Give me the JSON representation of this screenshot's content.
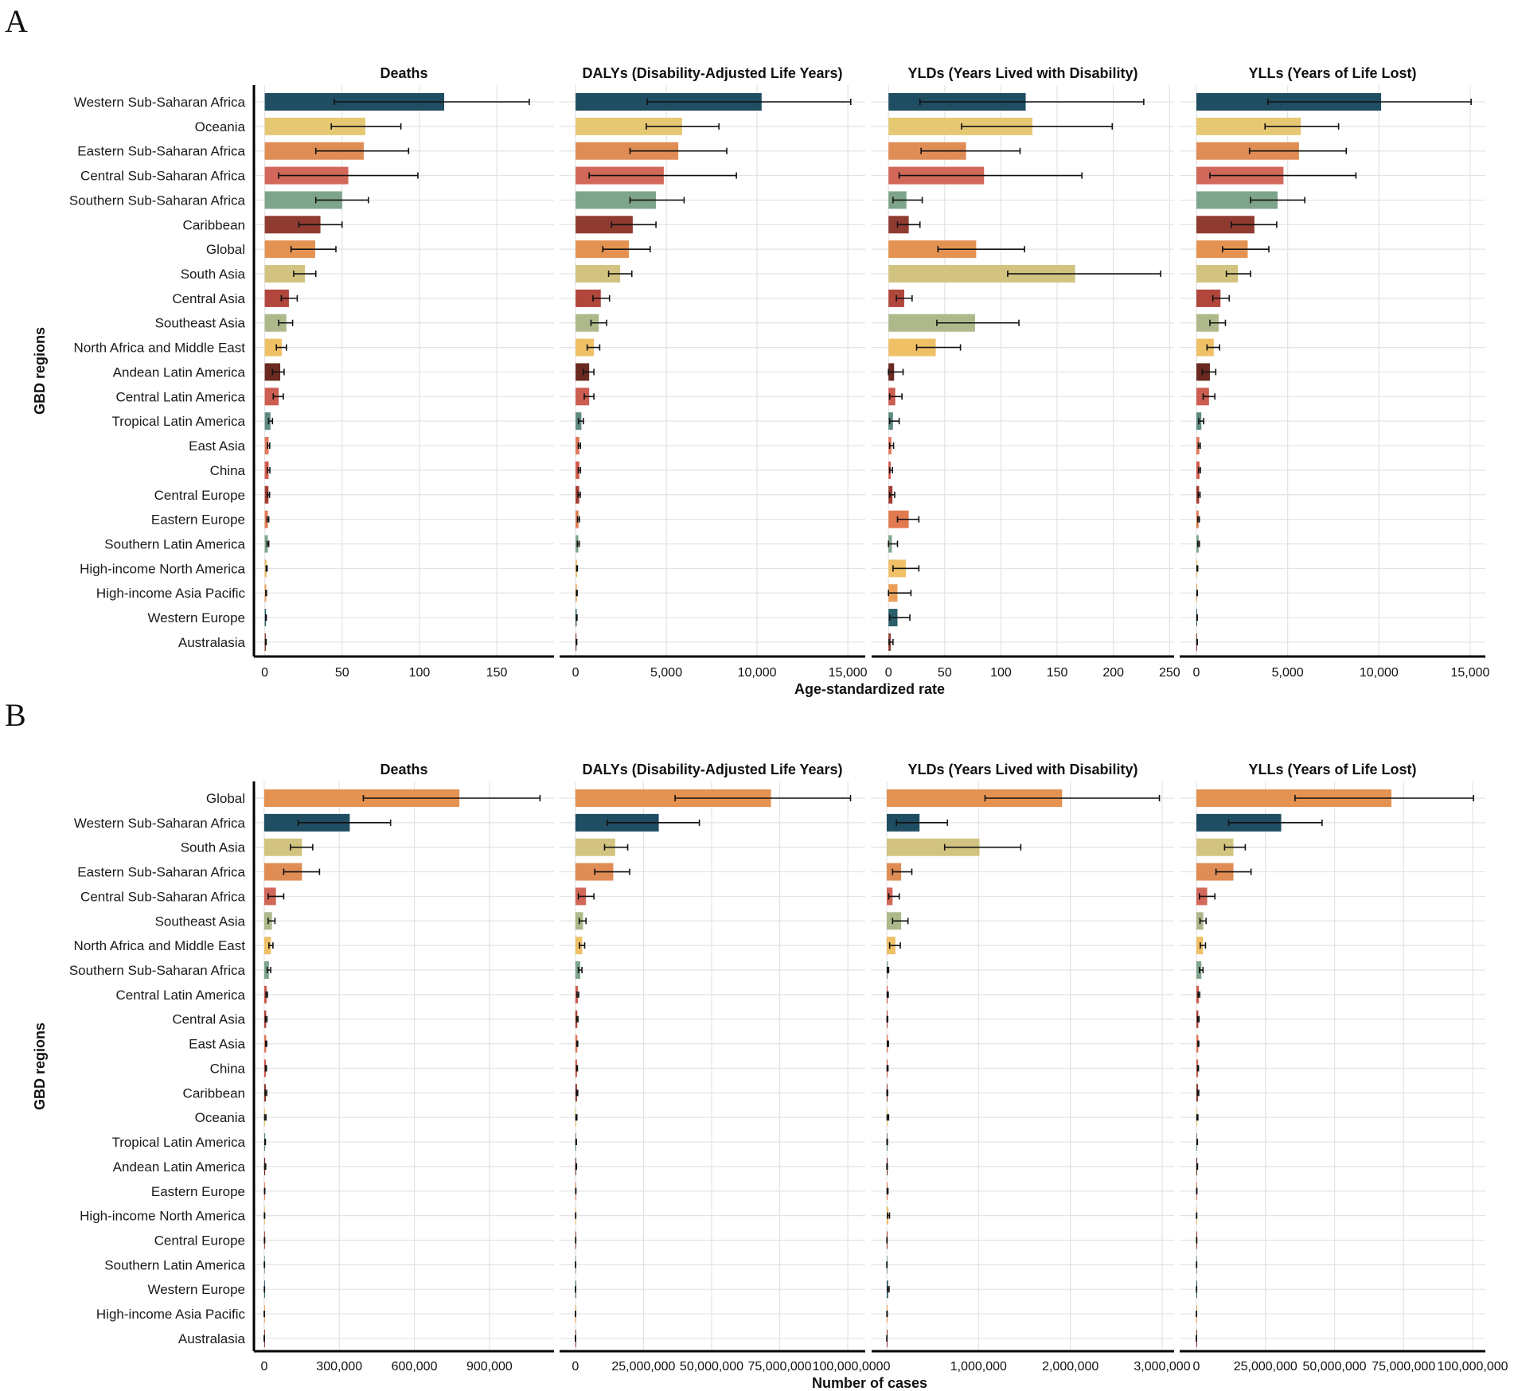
{
  "region_colors": {
    "Western Sub-Saharan Africa": "#1f4d62",
    "Oceania": "#e6c873",
    "Eastern Sub-Saharan Africa": "#e08c55",
    "Central Sub-Saharan Africa": "#d2685a",
    "Southern Sub-Saharan Africa": "#7fa48c",
    "Caribbean": "#8f3b30",
    "Global": "#e49251",
    "South Asia": "#d2c480",
    "Central Asia": "#b0463c",
    "Southeast Asia": "#adb98b",
    "North Africa and Middle East": "#efc066",
    "Andean Latin America": "#6b2a20",
    "Central Latin America": "#cc5d51",
    "Tropical Latin America": "#5f8a82",
    "East Asia": "#e0785a",
    "China": "#d25b4d",
    "Central Europe": "#a33c31",
    "Eastern Europe": "#e27a4f",
    "Southern Latin America": "#7fa48c",
    "High-income North America": "#efc066",
    "High-income Asia Pacific": "#eba05a",
    "Western Europe": "#2c5e6b",
    "Australasia": "#8a3a2e"
  },
  "chart_data": [
    {
      "type": "bar",
      "orientation": "horizontal",
      "panel_label": "A",
      "xlabel": "Age-standardized rate",
      "ylabel": "GBD regions",
      "grid": true,
      "regions": [
        "Western Sub-Saharan Africa",
        "Oceania",
        "Eastern Sub-Saharan Africa",
        "Central Sub-Saharan Africa",
        "Southern Sub-Saharan Africa",
        "Caribbean",
        "Global",
        "South Asia",
        "Central Asia",
        "Southeast Asia",
        "North Africa and Middle East",
        "Andean Latin America",
        "Central Latin America",
        "Tropical Latin America",
        "East Asia",
        "China",
        "Central Europe",
        "Eastern Europe",
        "Southern Latin America",
        "High-income North America",
        "High-income Asia Pacific",
        "Western Europe",
        "Australasia"
      ],
      "facets": [
        {
          "title": "Deaths",
          "xlim": [
            -7,
            187
          ],
          "ticks": [
            0,
            50,
            100,
            150
          ],
          "tick_labels": [
            "0",
            "50",
            "100",
            "150"
          ],
          "values": [
            116,
            65,
            64,
            54,
            50,
            36,
            32.6,
            26,
            15.6,
            14,
            11,
            10,
            9,
            3.7,
            2.5,
            2.5,
            2.4,
            2,
            2,
            1.2,
            0.9,
            0.8,
            0.7
          ],
          "lower": [
            45,
            43,
            33,
            9,
            33,
            22,
            17,
            18.7,
            10.7,
            9,
            7.5,
            5,
            5.5,
            2.5,
            1.8,
            1.8,
            1.7,
            1.5,
            1.5,
            0.9,
            0.7,
            0.6,
            0.5
          ],
          "upper": [
            171,
            88,
            93,
            99,
            67,
            50,
            46,
            33,
            21,
            18,
            14,
            12.5,
            12,
            5,
            3.2,
            3.3,
            3.1,
            2.6,
            2.6,
            1.5,
            1.1,
            1,
            0.9
          ]
        },
        {
          "title": "DALYs (Disability-Adjusted Life Years)",
          "xlim": [
            -880,
            15960
          ],
          "ticks": [
            0,
            5000,
            10000,
            15000
          ],
          "tick_labels": [
            "0",
            "5,000",
            "10,000",
            "15,000"
          ],
          "values": [
            10250,
            5870,
            5660,
            4860,
            4430,
            3150,
            2940,
            2460,
            1390,
            1280,
            1010,
            750,
            750,
            320,
            210,
            210,
            200,
            160,
            150,
            80,
            70,
            60,
            50
          ],
          "lower": [
            3950,
            3900,
            3000,
            750,
            3000,
            1980,
            1500,
            1820,
            960,
            850,
            640,
            430,
            480,
            160,
            150,
            150,
            140,
            110,
            100,
            60,
            50,
            40,
            35
          ],
          "upper": [
            15160,
            7900,
            8330,
            8860,
            5980,
            4430,
            4110,
            3100,
            1870,
            1710,
            1330,
            1010,
            1010,
            430,
            270,
            270,
            260,
            210,
            200,
            100,
            90,
            80,
            65
          ]
        },
        {
          "title": "YLDs (Years Lived with Disability)",
          "xlim": [
            -15,
            254
          ],
          "ticks": [
            0,
            50,
            100,
            150,
            200,
            250
          ],
          "tick_labels": [
            "0",
            "50",
            "100",
            "150",
            "200",
            "250"
          ],
          "values": [
            122,
            128,
            69,
            85,
            16,
            18,
            78,
            166,
            14,
            77,
            42,
            5,
            6,
            4,
            2.6,
            2,
            3.5,
            18,
            3,
            15.5,
            8,
            8,
            2
          ],
          "lower": [
            28,
            65,
            29,
            9.5,
            4,
            8,
            44,
            106,
            7,
            43,
            25,
            0,
            1,
            1,
            1,
            1,
            1,
            8,
            0,
            4,
            0,
            1,
            0.5
          ],
          "upper": [
            227,
            199,
            117,
            172,
            30,
            28,
            121,
            242,
            21,
            116,
            64,
            13,
            12,
            9.5,
            4.5,
            3.5,
            5.5,
            27,
            8,
            27,
            20,
            19,
            4
          ]
        },
        {
          "title": "YLLs (Years of Life Lost)",
          "xlim": [
            -916,
            15830
          ],
          "ticks": [
            0,
            5000,
            10000,
            15000
          ],
          "tick_labels": [
            "0",
            "5,000",
            "10,000",
            "15,000"
          ],
          "values": [
            10120,
            5720,
            5620,
            4770,
            4450,
            3180,
            2810,
            2280,
            1320,
            1220,
            950,
            740,
            690,
            270,
            160,
            170,
            150,
            120,
            120,
            50,
            40,
            40,
            40
          ],
          "lower": [
            3920,
            3760,
            2910,
            740,
            2970,
            1910,
            1430,
            1640,
            900,
            740,
            580,
            320,
            370,
            130,
            110,
            120,
            100,
            80,
            80,
            35,
            30,
            25,
            25
          ],
          "upper": [
            15050,
            7790,
            8210,
            8740,
            5940,
            4400,
            3970,
            2970,
            1800,
            1590,
            1270,
            1060,
            1010,
            400,
            210,
            220,
            200,
            160,
            160,
            70,
            55,
            50,
            50
          ]
        }
      ]
    },
    {
      "type": "bar",
      "orientation": "horizontal",
      "panel_label": "B",
      "xlabel": "Number of cases",
      "ylabel": "GBD regions",
      "grid": true,
      "regions": [
        "Global",
        "Western Sub-Saharan Africa",
        "South Asia",
        "Eastern Sub-Saharan Africa",
        "Central Sub-Saharan Africa",
        "Southeast Asia",
        "North Africa and Middle East",
        "Southern Sub-Saharan Africa",
        "Central Latin America",
        "Central Asia",
        "East Asia",
        "China",
        "Caribbean",
        "Oceania",
        "Tropical Latin America",
        "Andean Latin America",
        "Eastern Europe",
        "High-income North America",
        "Central Europe",
        "Southern Latin America",
        "Western Europe",
        "High-income Asia Pacific",
        "Australasia"
      ],
      "facets": [
        {
          "title": "Deaths",
          "xlim": [
            -41000,
            1158000
          ],
          "ticks": [
            0,
            300000,
            600000,
            900000
          ],
          "tick_labels": [
            "0",
            "300,000",
            "600,000",
            "900,000"
          ],
          "values": [
            780000,
            342000,
            151000,
            151000,
            47000,
            31000,
            27000,
            19000,
            10000,
            8000,
            8000,
            7000,
            7000,
            4000,
            4000,
            4000,
            2000,
            1500,
            1500,
            1000,
            1000,
            600,
            300
          ],
          "lower": [
            396000,
            136000,
            105000,
            78000,
            16000,
            16000,
            19000,
            12000,
            7000,
            5000,
            6000,
            5000,
            4000,
            2000,
            3000,
            2000,
            1500,
            1000,
            1000,
            700,
            700,
            400,
            200
          ],
          "upper": [
            1102000,
            505000,
            194000,
            221000,
            78000,
            43000,
            35000,
            26000,
            13000,
            11000,
            10000,
            9000,
            10000,
            7000,
            5000,
            6000,
            2500,
            2000,
            2000,
            1300,
            1300,
            800,
            400
          ]
        },
        {
          "title": "DALYs (Disability-Adjusted Life Years)",
          "xlim": [
            -5800000,
            106400000
          ],
          "ticks": [
            0,
            25000000,
            50000000,
            75000000,
            100000000
          ],
          "tick_labels": [
            "0",
            "25,000,000",
            "50,000,000",
            "75,000,000",
            "100,000,000"
          ],
          "values": [
            71800000,
            30600000,
            14600000,
            13900000,
            3900000,
            2800000,
            2500000,
            1800000,
            900000,
            700000,
            700000,
            600000,
            600000,
            350000,
            300000,
            300000,
            150000,
            100000,
            100000,
            80000,
            70000,
            40000,
            20000
          ],
          "lower": [
            36600000,
            11700000,
            10700000,
            7100000,
            1100000,
            1400000,
            1500000,
            1100000,
            600000,
            450000,
            550000,
            450000,
            400000,
            200000,
            220000,
            200000,
            110000,
            75000,
            75000,
            60000,
            50000,
            30000,
            15000
          ],
          "upper": [
            101000000,
            45500000,
            19200000,
            19900000,
            6800000,
            3900000,
            3400000,
            2400000,
            1200000,
            950000,
            850000,
            750000,
            850000,
            550000,
            380000,
            420000,
            190000,
            130000,
            130000,
            100000,
            90000,
            50000,
            25000
          ]
        },
        {
          "title": "YLDs (Years Lived with Disability)",
          "xlim": [
            -165000,
            3130000
          ],
          "ticks": [
            0,
            1000000,
            2000000,
            3000000
          ],
          "tick_labels": [
            "0",
            "1,000,000",
            "2,000,000",
            "3,000,000"
          ],
          "values": [
            1910000,
            357000,
            1010000,
            157000,
            63000,
            157000,
            94000,
            12000,
            10000,
            6000,
            12000,
            8000,
            5000,
            10000,
            4000,
            3000,
            8000,
            18000,
            2000,
            1000,
            15000,
            3000,
            1000
          ],
          "lower": [
            1070000,
            105000,
            630000,
            63000,
            21000,
            63000,
            31000,
            6000,
            5000,
            3000,
            7000,
            4000,
            2000,
            4000,
            2000,
            1000,
            4000,
            8000,
            1000,
            500,
            7000,
            1500,
            500
          ],
          "upper": [
            2970000,
            661000,
            1460000,
            273000,
            136000,
            231000,
            147000,
            20000,
            16000,
            10000,
            18000,
            13000,
            9000,
            20000,
            7000,
            6000,
            13000,
            30000,
            3000,
            2000,
            25000,
            5000,
            2000
          ]
        },
        {
          "title": "YLLs (Years of Life Lost)",
          "xlim": [
            -6050000,
            104600000
          ],
          "ticks": [
            0,
            25000000,
            50000000,
            75000000,
            100000000
          ],
          "tick_labels": [
            "0",
            "25,000,000",
            "50,000,000",
            "75,000,000",
            "100,000,000"
          ],
          "values": [
            70600000,
            30700000,
            13400000,
            13400000,
            3900000,
            2500000,
            2400000,
            1800000,
            900000,
            700000,
            700000,
            600000,
            600000,
            340000,
            300000,
            300000,
            140000,
            90000,
            100000,
            80000,
            60000,
            40000,
            20000
          ],
          "lower": [
            35700000,
            11700000,
            10200000,
            7100000,
            1100000,
            1300000,
            1400000,
            1100000,
            600000,
            450000,
            550000,
            450000,
            400000,
            200000,
            220000,
            200000,
            100000,
            65000,
            75000,
            60000,
            45000,
            30000,
            15000
          ],
          "upper": [
            100300000,
            45500000,
            17700000,
            19800000,
            6700000,
            3500000,
            3300000,
            2400000,
            1200000,
            950000,
            850000,
            750000,
            850000,
            540000,
            380000,
            420000,
            180000,
            120000,
            130000,
            100000,
            80000,
            50000,
            25000
          ]
        }
      ]
    }
  ]
}
